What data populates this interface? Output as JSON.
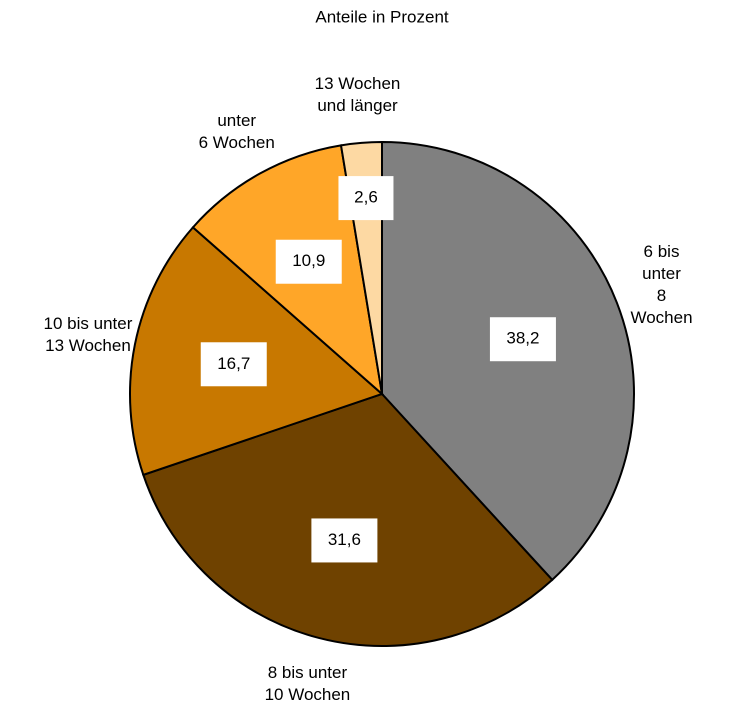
{
  "chart_data": {
    "type": "pie",
    "title": "Anteile in Prozent",
    "categories": [
      "6 bis unter\n8 Wochen",
      "8 bis unter\n10 Wochen",
      "10 bis unter\n13 Wochen",
      "unter\n6 Wochen",
      "13 Wochen\nund länger"
    ],
    "values": [
      38.2,
      31.6,
      16.7,
      10.9,
      2.6
    ],
    "value_labels": [
      "38,2",
      "31,6",
      "16,7",
      "10,9",
      "2,6"
    ],
    "colors": [
      "#808080",
      "#6f4200",
      "#c87800",
      "#ffa628",
      "#fdd9a3"
    ]
  }
}
